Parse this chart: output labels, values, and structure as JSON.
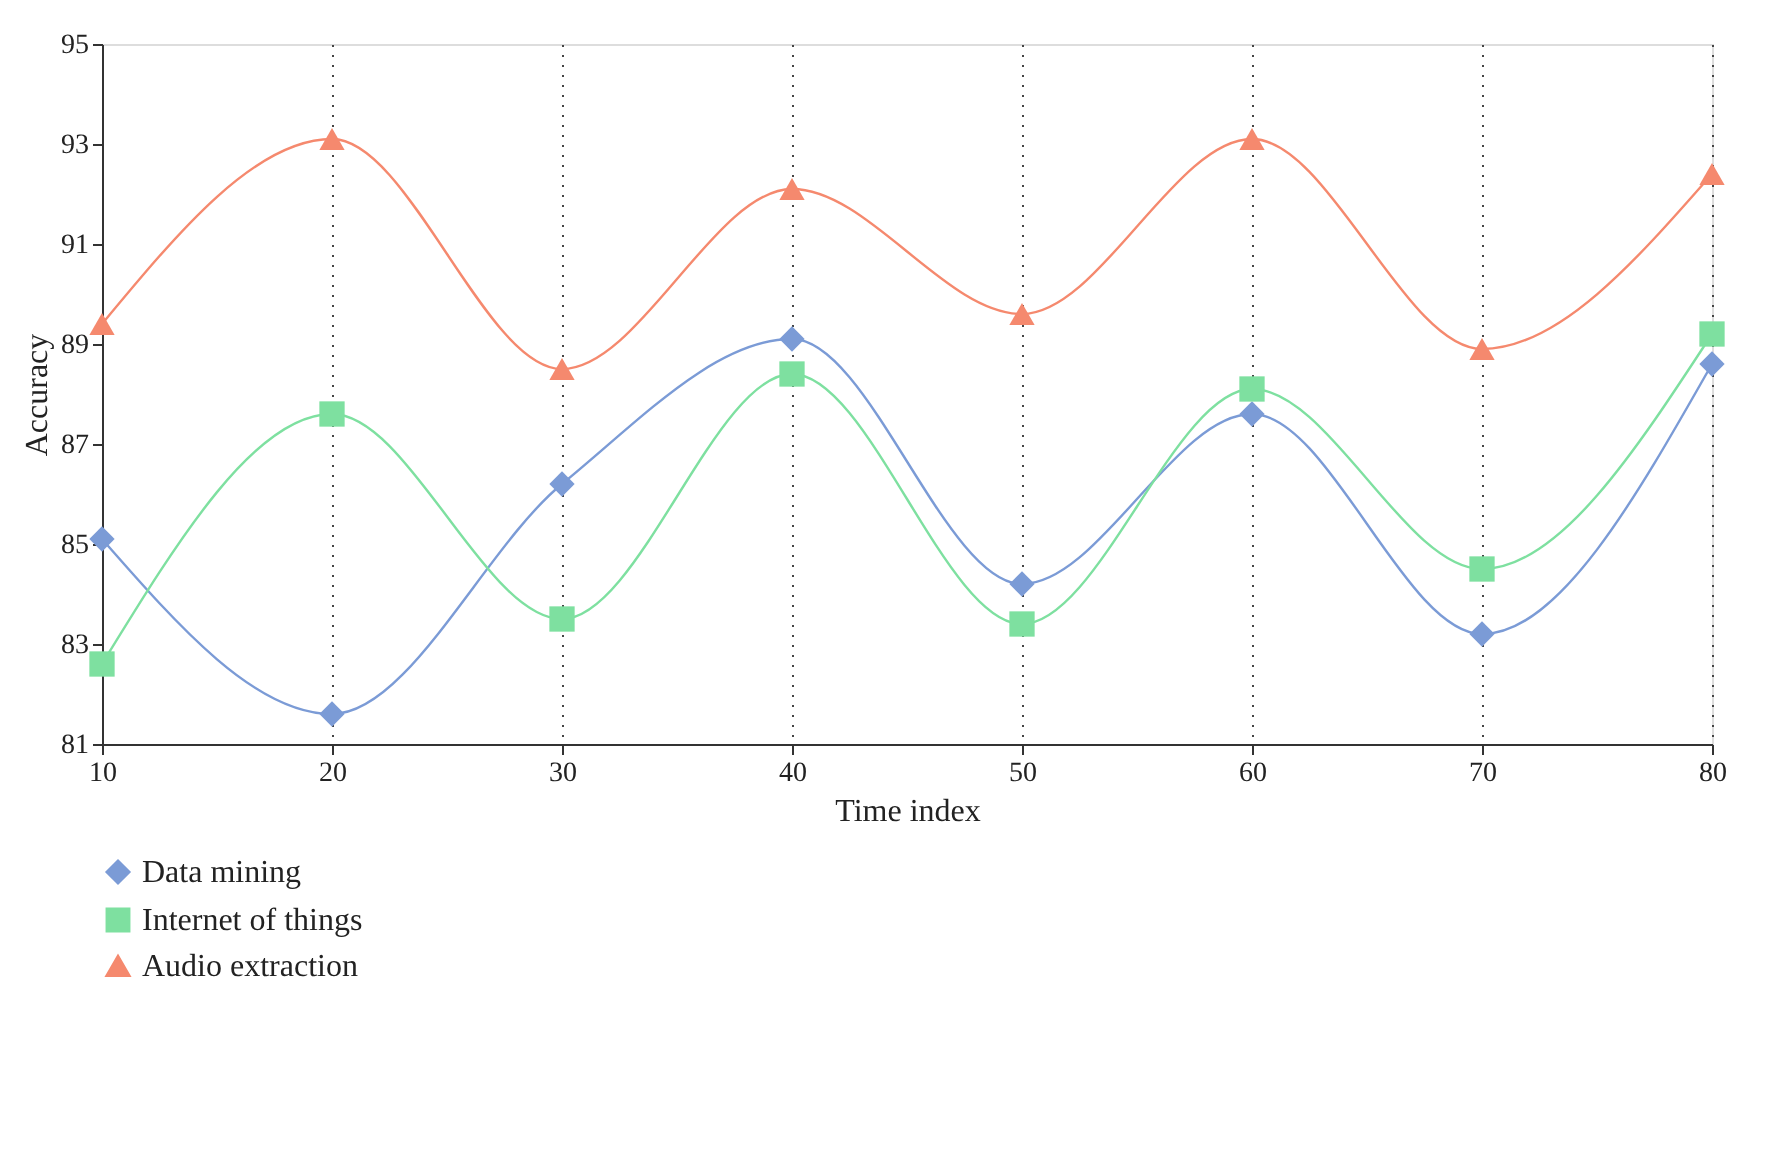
{
  "chart_data": {
    "type": "line",
    "xlabel": "Time index",
    "ylabel": "Accuracy",
    "x": [
      10,
      20,
      30,
      40,
      50,
      60,
      70,
      80
    ],
    "xlim": [
      10,
      80
    ],
    "xticks": [
      10,
      20,
      30,
      40,
      50,
      60,
      70,
      80
    ],
    "ylim": [
      81,
      95
    ],
    "yticks": [
      81,
      83,
      85,
      87,
      89,
      91,
      93,
      95
    ],
    "grid": "x",
    "legend": "bottom left",
    "series": [
      {
        "name": "Data mining",
        "color": "#7b9bd6",
        "marker": "diamond",
        "values": [
          85.1,
          81.6,
          86.2,
          89.1,
          84.2,
          87.6,
          83.2,
          88.6
        ]
      },
      {
        "name": "Internet of things",
        "color": "#7ee0a0",
        "marker": "square",
        "values": [
          82.6,
          87.6,
          83.5,
          88.4,
          83.4,
          88.1,
          84.5,
          89.2
        ]
      },
      {
        "name": "Audio extraction",
        "color": "#f5896e",
        "marker": "triangle",
        "values": [
          89.4,
          93.1,
          88.5,
          92.1,
          89.6,
          93.1,
          88.9,
          92.4
        ]
      }
    ]
  }
}
